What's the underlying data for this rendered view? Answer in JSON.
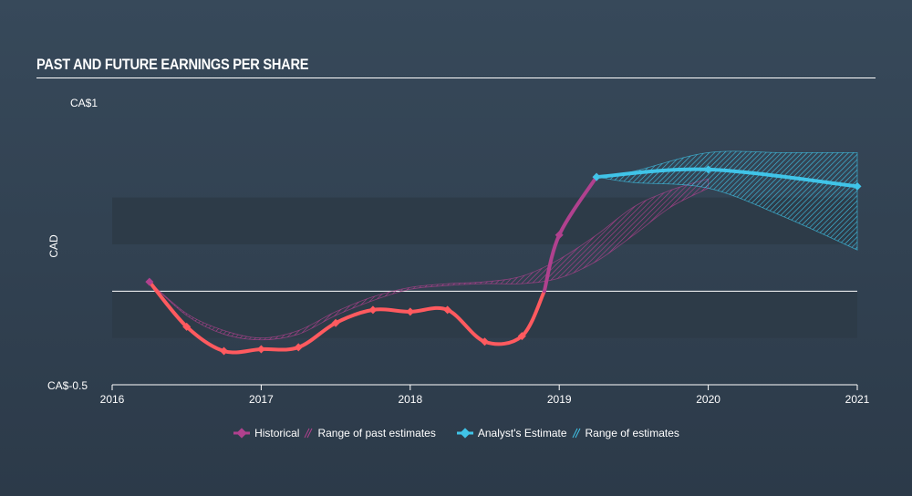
{
  "header": {
    "title": "PAST AND FUTURE EARNINGS PER SHARE"
  },
  "chart_data": {
    "type": "line",
    "ylabel": "CAD",
    "y_tick_labels": {
      "top": "CA$1",
      "bottom": "CA$-0.5"
    },
    "ylim": [
      -0.5,
      1.0
    ],
    "xlim": [
      2016.0,
      2021.0
    ],
    "x_tick_labels": [
      "2016",
      "2017",
      "2018",
      "2019",
      "2020",
      "2021"
    ],
    "x_ticks": [
      2016,
      2017,
      2018,
      2019,
      2020,
      2021
    ],
    "zero_line": 0,
    "series": [
      {
        "name": "Historical",
        "color": "#ff5a5f",
        "points": [
          [
            2016.25,
            0.05
          ],
          [
            2016.5,
            -0.19
          ],
          [
            2016.75,
            -0.32
          ],
          [
            2017.0,
            -0.31
          ],
          [
            2017.25,
            -0.3
          ],
          [
            2017.5,
            -0.17
          ],
          [
            2017.75,
            -0.1
          ],
          [
            2018.0,
            -0.11
          ],
          [
            2018.25,
            -0.1
          ],
          [
            2018.5,
            -0.27
          ],
          [
            2018.75,
            -0.24
          ],
          [
            2019.0,
            0.3
          ],
          [
            2019.25,
            0.61
          ]
        ]
      },
      {
        "name": "Analyst's Estimate",
        "color": "#40c4e8",
        "points": [
          [
            2019.25,
            0.61
          ],
          [
            2020.0,
            0.65
          ],
          [
            2021.0,
            0.56
          ]
        ]
      }
    ],
    "past_estimate_range": {
      "name": "Range of past estimates",
      "color": "#b0418e",
      "upper": [
        [
          2016.25,
          0.05
        ],
        [
          2016.5,
          -0.12
        ],
        [
          2016.75,
          -0.21
        ],
        [
          2017.0,
          -0.25
        ],
        [
          2017.25,
          -0.21
        ],
        [
          2017.5,
          -0.11
        ],
        [
          2017.75,
          -0.03
        ],
        [
          2018.0,
          0.02
        ],
        [
          2018.25,
          0.04
        ],
        [
          2018.5,
          0.05
        ],
        [
          2018.75,
          0.08
        ],
        [
          2019.0,
          0.17
        ],
        [
          2019.25,
          0.3
        ],
        [
          2019.5,
          0.45
        ],
        [
          2019.75,
          0.54
        ],
        [
          2020.0,
          0.6
        ]
      ],
      "lower": [
        [
          2016.25,
          0.05
        ],
        [
          2016.5,
          -0.13
        ],
        [
          2016.75,
          -0.23
        ],
        [
          2017.0,
          -0.26
        ],
        [
          2017.25,
          -0.23
        ],
        [
          2017.5,
          -0.13
        ],
        [
          2017.75,
          -0.05
        ],
        [
          2018.0,
          0.01
        ],
        [
          2018.25,
          0.03
        ],
        [
          2018.5,
          0.04
        ],
        [
          2018.75,
          0.04
        ],
        [
          2019.0,
          0.07
        ],
        [
          2019.25,
          0.16
        ],
        [
          2019.5,
          0.3
        ],
        [
          2019.75,
          0.45
        ],
        [
          2020.0,
          0.55
        ]
      ]
    },
    "future_estimate_range": {
      "name": "Range of estimates",
      "color": "#40c4e8",
      "upper": [
        [
          2019.25,
          0.61
        ],
        [
          2019.5,
          0.64
        ],
        [
          2020.0,
          0.74
        ],
        [
          2020.5,
          0.74
        ],
        [
          2021.0,
          0.74
        ]
      ],
      "lower": [
        [
          2019.25,
          0.61
        ],
        [
          2019.5,
          0.58
        ],
        [
          2020.0,
          0.55
        ],
        [
          2020.5,
          0.4
        ],
        [
          2021.0,
          0.22
        ]
      ]
    },
    "legend": {
      "placement": "bottom-center",
      "items": [
        "Historical",
        "Range of past estimates",
        "Analyst's Estimate",
        "Range of estimates"
      ]
    }
  },
  "colors": {
    "background": "#33444f",
    "band": "#2d3b48",
    "historical_past": "#b0418e"
  }
}
